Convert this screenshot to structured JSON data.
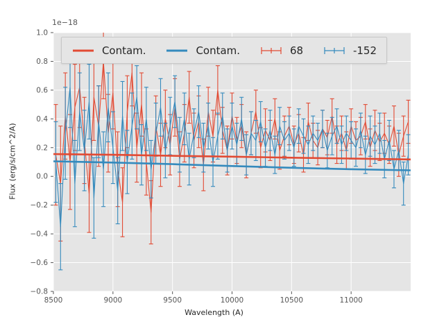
{
  "figure": {
    "background": "#ffffff",
    "axes_background": "#E5E5E5",
    "grid_color": "#ffffff",
    "tick_color": "#555555",
    "text_color": "#262626"
  },
  "chart_data": {
    "type": "line",
    "subtype": "errorbar-spectrum",
    "title": "",
    "xlabel": "Wavelength (A)",
    "ylabel": "Flux (erg/s/cm^2/A)",
    "offset_text": "1e−18",
    "xlim": [
      8500,
      11500
    ],
    "ylim": [
      -0.8,
      1.0
    ],
    "grid": true,
    "xticks": [
      8500,
      9000,
      9500,
      10000,
      10500,
      11000
    ],
    "xtick_labels": [
      "8500",
      "9000",
      "9500",
      "10000",
      "10500",
      "11000"
    ],
    "yticks": [
      -0.8,
      -0.6,
      -0.4,
      -0.2,
      0.0,
      0.2,
      0.4,
      0.6,
      0.8,
      1.0
    ],
    "ytick_labels": [
      "−0.8",
      "−0.6",
      "−0.4",
      "−0.2",
      "0.0",
      "0.2",
      "0.4",
      "0.6",
      "0.8",
      "1.0"
    ],
    "legend": {
      "position": "upper center",
      "entries": [
        {
          "label": "Contam.",
          "color": "#E24A33",
          "glyph": "line"
        },
        {
          "label": "Contam.",
          "color": "#348ABD",
          "glyph": "line"
        },
        {
          "label": "68",
          "color": "#E24A33",
          "glyph": "errorbar"
        },
        {
          "label": "-152",
          "color": "#348ABD",
          "glyph": "errorbar"
        }
      ]
    },
    "series": [
      {
        "name": "68",
        "color": "#E24A33",
        "style": "errorbar",
        "linewidth": 1.1,
        "x": [
          8520,
          8560,
          8600,
          8640,
          8680,
          8720,
          8760,
          8800,
          8840,
          8880,
          8920,
          8960,
          9000,
          9040,
          9080,
          9120,
          9160,
          9200,
          9240,
          9280,
          9320,
          9360,
          9400,
          9440,
          9480,
          9520,
          9560,
          9600,
          9640,
          9680,
          9720,
          9760,
          9800,
          9840,
          9880,
          9920,
          9960,
          10000,
          10040,
          10080,
          10120,
          10160,
          10200,
          10240,
          10280,
          10320,
          10360,
          10400,
          10440,
          10480,
          10520,
          10560,
          10600,
          10640,
          10680,
          10720,
          10760,
          10800,
          10840,
          10880,
          10920,
          10960,
          11000,
          11040,
          11080,
          11120,
          11160,
          11200,
          11240,
          11280,
          11320,
          11360,
          11400,
          11440,
          11480
        ],
        "y": [
          0.15,
          -0.05,
          0.42,
          0.1,
          0.48,
          0.62,
          0.25,
          -0.12,
          0.55,
          0.35,
          0.8,
          0.3,
          0.58,
          0.05,
          -0.18,
          0.45,
          0.72,
          0.2,
          0.5,
          0.1,
          -0.25,
          0.35,
          0.15,
          0.4,
          0.22,
          0.48,
          0.12,
          0.3,
          0.55,
          0.25,
          0.38,
          0.08,
          0.45,
          0.28,
          0.6,
          0.32,
          0.18,
          0.42,
          0.25,
          0.35,
          0.15,
          0.3,
          0.45,
          0.2,
          0.32,
          0.25,
          0.4,
          0.18,
          0.28,
          0.35,
          0.22,
          0.3,
          0.15,
          0.38,
          0.25,
          0.2,
          0.33,
          0.27,
          0.42,
          0.22,
          0.3,
          0.18,
          0.35,
          0.25,
          0.28,
          0.38,
          0.2,
          0.32,
          0.24,
          0.3,
          0.22,
          0.35,
          0.15,
          0.28,
          0.38
        ],
        "yerr": [
          0.35,
          0.4,
          0.3,
          0.33,
          0.3,
          0.28,
          0.3,
          0.27,
          0.3,
          0.28,
          0.26,
          0.27,
          0.25,
          0.26,
          0.24,
          0.25,
          0.23,
          0.24,
          0.22,
          0.23,
          0.22,
          0.21,
          0.22,
          0.2,
          0.21,
          0.2,
          0.19,
          0.2,
          0.18,
          0.19,
          0.18,
          0.18,
          0.17,
          0.18,
          0.17,
          0.16,
          0.17,
          0.16,
          0.16,
          0.15,
          0.16,
          0.15,
          0.15,
          0.14,
          0.15,
          0.14,
          0.14,
          0.13,
          0.14,
          0.13,
          0.13,
          0.13,
          0.12,
          0.13,
          0.12,
          0.12,
          0.13,
          0.12,
          0.12,
          0.13,
          0.12,
          0.13,
          0.12,
          0.13,
          0.13,
          0.12,
          0.13,
          0.14,
          0.13,
          0.14,
          0.13,
          0.14,
          0.15,
          0.14,
          0.15
        ]
      },
      {
        "name": "-152",
        "color": "#348ABD",
        "style": "errorbar",
        "linewidth": 1.1,
        "x": [
          8520,
          8560,
          8600,
          8640,
          8680,
          8720,
          8760,
          8800,
          8840,
          8880,
          8920,
          8960,
          9000,
          9040,
          9080,
          9120,
          9160,
          9200,
          9240,
          9280,
          9320,
          9360,
          9400,
          9440,
          9480,
          9520,
          9560,
          9600,
          9640,
          9680,
          9720,
          9760,
          9800,
          9840,
          9880,
          9920,
          9960,
          10000,
          10040,
          10080,
          10120,
          10160,
          10200,
          10240,
          10280,
          10320,
          10360,
          10400,
          10440,
          10480,
          10520,
          10560,
          10600,
          10640,
          10680,
          10720,
          10760,
          10800,
          10840,
          10880,
          10920,
          10960,
          11000,
          11040,
          11080,
          11120,
          11160,
          11200,
          11240,
          11280,
          11320,
          11360,
          11400,
          11440,
          11480
        ],
        "y": [
          0.1,
          -0.35,
          0.3,
          0.62,
          -0.05,
          0.45,
          0.18,
          0.52,
          -0.15,
          0.38,
          0.05,
          0.48,
          0.2,
          -0.1,
          0.42,
          0.1,
          0.35,
          0.55,
          0.15,
          0.4,
          0.05,
          0.3,
          0.48,
          0.18,
          0.35,
          0.52,
          0.22,
          0.4,
          0.12,
          0.3,
          0.45,
          0.2,
          0.35,
          0.1,
          0.28,
          0.42,
          0.18,
          0.35,
          0.22,
          0.4,
          0.15,
          0.3,
          0.25,
          0.38,
          0.2,
          0.32,
          0.15,
          0.35,
          0.25,
          0.3,
          0.2,
          0.35,
          0.28,
          0.22,
          0.3,
          0.25,
          0.33,
          0.18,
          0.28,
          0.35,
          0.22,
          0.3,
          0.25,
          0.2,
          0.32,
          0.15,
          0.28,
          0.22,
          0.3,
          0.12,
          0.25,
          0.05,
          0.18,
          -0.05,
          0.15
        ],
        "yerr": [
          0.28,
          0.3,
          0.32,
          0.28,
          0.3,
          0.27,
          0.28,
          0.26,
          0.28,
          0.25,
          0.26,
          0.24,
          0.25,
          0.23,
          0.24,
          0.22,
          0.23,
          0.22,
          0.21,
          0.22,
          0.2,
          0.21,
          0.2,
          0.19,
          0.2,
          0.18,
          0.19,
          0.18,
          0.18,
          0.17,
          0.18,
          0.17,
          0.16,
          0.17,
          0.16,
          0.16,
          0.15,
          0.16,
          0.15,
          0.15,
          0.14,
          0.15,
          0.14,
          0.14,
          0.13,
          0.14,
          0.13,
          0.13,
          0.13,
          0.12,
          0.13,
          0.12,
          0.12,
          0.13,
          0.12,
          0.12,
          0.13,
          0.12,
          0.13,
          0.12,
          0.13,
          0.12,
          0.13,
          0.13,
          0.12,
          0.13,
          0.14,
          0.13,
          0.14,
          0.13,
          0.14,
          0.13,
          0.14,
          0.15,
          0.14
        ]
      },
      {
        "name": "Contam.",
        "color": "#348ABD",
        "style": "line",
        "linewidth": 2.6,
        "x": [
          8500,
          9000,
          9500,
          10000,
          10500,
          11000,
          11500
        ],
        "y": [
          0.105,
          0.096,
          0.085,
          0.072,
          0.06,
          0.05,
          0.042
        ]
      },
      {
        "name": "Contam.",
        "color": "#E24A33",
        "style": "line",
        "linewidth": 2.6,
        "x": [
          8500,
          9000,
          9500,
          10000,
          10500,
          11000,
          11500
        ],
        "y": [
          0.155,
          0.15,
          0.143,
          0.137,
          0.13,
          0.124,
          0.118
        ]
      }
    ]
  }
}
